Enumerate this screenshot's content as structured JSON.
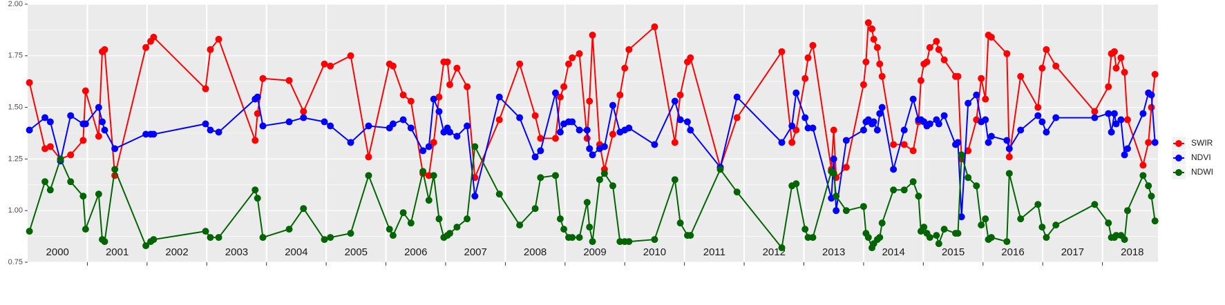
{
  "chart_data": {
    "type": "line",
    "x": [
      2000.03,
      2000.29,
      2000.38,
      2000.55,
      2000.72,
      2000.93,
      2000.97,
      2001.19,
      2001.25,
      2001.29,
      2001.46,
      2001.98,
      2002.06,
      2002.11,
      2002.98,
      2003.06,
      2003.2,
      2003.81,
      2003.85,
      2003.94,
      2004.38,
      2004.62,
      2004.97,
      2005.07,
      2005.41,
      2005.71,
      2006.06,
      2006.12,
      2006.29,
      2006.42,
      2006.62,
      2006.72,
      2006.8,
      2006.89,
      2006.97,
      2007.03,
      2007.07,
      2007.19,
      2007.36,
      2007.49,
      2007.9,
      2008.24,
      2008.5,
      2008.59,
      2008.84,
      2008.92,
      2008.98,
      2009.06,
      2009.12,
      2009.24,
      2009.37,
      2009.41,
      2009.46,
      2009.58,
      2009.66,
      2009.8,
      2009.92,
      2010.0,
      2010.07,
      2010.5,
      2010.84,
      2010.93,
      2011.05,
      2011.1,
      2011.6,
      2011.88,
      2012.63,
      2012.8,
      2012.87,
      2013.02,
      2013.07,
      2013.15,
      2013.46,
      2013.5,
      2013.54,
      2013.71,
      2014.0,
      2014.04,
      2014.08,
      2014.14,
      2014.17,
      2014.23,
      2014.27,
      2014.31,
      2014.5,
      2014.68,
      2014.83,
      2014.92,
      2014.96,
      2015.01,
      2015.06,
      2015.11,
      2015.22,
      2015.26,
      2015.35,
      2015.54,
      2015.58,
      2015.64,
      2015.75,
      2015.89,
      2015.97,
      2016.04,
      2016.09,
      2016.14,
      2016.4,
      2016.44,
      2016.63,
      2016.92,
      2016.99,
      2017.06,
      2017.22,
      2017.87,
      2018.1,
      2018.15,
      2018.2,
      2018.23,
      2018.31,
      2018.37,
      2018.42,
      2018.68,
      2018.77,
      2018.82,
      2018.88
    ],
    "series": [
      {
        "name": "SWIR",
        "color": "#ff0000",
        "values": [
          1.62,
          1.3,
          1.31,
          1.25,
          1.27,
          1.34,
          1.58,
          1.36,
          1.77,
          1.78,
          1.17,
          1.79,
          1.82,
          1.84,
          1.59,
          1.78,
          1.83,
          1.34,
          1.47,
          1.64,
          1.63,
          1.48,
          1.71,
          1.7,
          1.75,
          1.26,
          1.71,
          1.7,
          1.56,
          1.53,
          1.18,
          1.17,
          1.33,
          1.55,
          1.72,
          1.72,
          1.61,
          1.69,
          1.6,
          1.16,
          1.44,
          1.71,
          1.46,
          1.35,
          1.35,
          1.55,
          1.6,
          1.71,
          1.74,
          1.76,
          1.35,
          1.53,
          1.85,
          1.32,
          1.2,
          1.37,
          1.56,
          1.69,
          1.78,
          1.89,
          1.33,
          1.56,
          1.72,
          1.74,
          1.21,
          1.45,
          1.77,
          1.33,
          1.39,
          1.64,
          1.74,
          1.8,
          1.2,
          1.39,
          1.16,
          1.21,
          1.61,
          1.72,
          1.91,
          1.88,
          1.83,
          1.79,
          1.71,
          1.65,
          1.32,
          1.32,
          1.29,
          1.43,
          1.63,
          1.71,
          1.72,
          1.79,
          1.82,
          1.78,
          1.73,
          1.65,
          1.65,
          1.25,
          1.29,
          1.44,
          1.64,
          1.54,
          1.85,
          1.84,
          1.76,
          1.26,
          1.65,
          1.5,
          1.69,
          1.78,
          1.7,
          1.48,
          1.6,
          1.76,
          1.77,
          1.69,
          1.74,
          1.67,
          1.44,
          1.22,
          1.33,
          1.5,
          1.66
        ]
      },
      {
        "name": "NDVI",
        "color": "#0000ff",
        "values": [
          1.39,
          1.45,
          1.43,
          1.24,
          1.46,
          1.42,
          1.42,
          1.5,
          1.43,
          1.39,
          1.3,
          1.37,
          1.37,
          1.37,
          1.42,
          1.39,
          1.38,
          1.54,
          1.55,
          1.41,
          1.43,
          1.45,
          1.43,
          1.41,
          1.33,
          1.41,
          1.4,
          1.42,
          1.44,
          1.4,
          1.29,
          1.31,
          1.54,
          1.48,
          1.38,
          1.4,
          1.38,
          1.36,
          1.41,
          1.07,
          1.55,
          1.45,
          1.26,
          1.29,
          1.57,
          1.38,
          1.42,
          1.43,
          1.43,
          1.39,
          1.39,
          1.3,
          1.27,
          1.3,
          1.31,
          1.51,
          1.38,
          1.39,
          1.4,
          1.32,
          1.53,
          1.44,
          1.43,
          1.39,
          1.21,
          1.55,
          1.33,
          1.41,
          1.57,
          1.45,
          1.4,
          1.4,
          1.06,
          1.25,
          1.0,
          1.34,
          1.39,
          1.43,
          1.44,
          1.42,
          1.43,
          1.39,
          1.47,
          1.5,
          1.2,
          1.39,
          1.54,
          1.44,
          1.44,
          1.43,
          1.41,
          1.42,
          1.44,
          1.42,
          1.46,
          1.32,
          1.33,
          0.97,
          1.52,
          1.56,
          1.43,
          1.44,
          1.33,
          1.36,
          1.34,
          1.3,
          1.39,
          1.46,
          1.43,
          1.38,
          1.45,
          1.45,
          1.47,
          1.38,
          1.47,
          1.42,
          1.44,
          1.27,
          1.3,
          1.47,
          1.57,
          1.56,
          1.33
        ]
      },
      {
        "name": "NDWI",
        "color": "#006400",
        "values": [
          0.9,
          1.14,
          1.1,
          1.25,
          1.14,
          1.07,
          0.91,
          1.08,
          0.86,
          0.85,
          1.2,
          0.83,
          0.85,
          0.86,
          0.9,
          0.87,
          0.87,
          1.1,
          1.06,
          0.87,
          0.91,
          1.01,
          0.86,
          0.87,
          0.89,
          1.17,
          0.91,
          0.88,
          0.99,
          0.94,
          1.19,
          1.05,
          1.17,
          0.96,
          0.87,
          0.88,
          0.89,
          0.92,
          0.96,
          1.31,
          1.08,
          0.93,
          1.01,
          1.16,
          1.17,
          0.96,
          0.91,
          0.87,
          0.87,
          0.87,
          1.04,
          0.92,
          0.85,
          1.15,
          1.18,
          1.12,
          0.85,
          0.85,
          0.85,
          0.86,
          1.15,
          0.94,
          0.88,
          0.88,
          1.2,
          1.09,
          0.82,
          1.12,
          1.13,
          0.91,
          0.87,
          0.87,
          1.19,
          1.18,
          1.07,
          1.0,
          1.02,
          0.89,
          0.87,
          0.82,
          0.84,
          0.86,
          0.87,
          0.94,
          1.1,
          1.1,
          1.14,
          1.07,
          0.9,
          0.92,
          0.89,
          0.87,
          0.88,
          0.84,
          0.91,
          0.89,
          0.89,
          1.27,
          1.16,
          1.12,
          0.93,
          0.96,
          0.86,
          0.87,
          0.85,
          1.18,
          0.96,
          1.03,
          0.92,
          0.87,
          0.93,
          1.03,
          0.94,
          0.87,
          0.87,
          0.88,
          0.88,
          0.86,
          1.0,
          1.17,
          1.12,
          1.07,
          0.95
        ]
      }
    ],
    "xlim": [
      2000,
      2018.93
    ],
    "xticks": [
      {
        "value": 2000.5,
        "label": "2000"
      },
      {
        "value": 2001.5,
        "label": "2001"
      },
      {
        "value": 2002.5,
        "label": "2002"
      },
      {
        "value": 2003.5,
        "label": "2003"
      },
      {
        "value": 2004.5,
        "label": "2004"
      },
      {
        "value": 2005.5,
        "label": "2005"
      },
      {
        "value": 2006.5,
        "label": "2006"
      },
      {
        "value": 2007.5,
        "label": "2007"
      },
      {
        "value": 2008.5,
        "label": "2008"
      },
      {
        "value": 2009.5,
        "label": "2009"
      },
      {
        "value": 2010.5,
        "label": "2010"
      },
      {
        "value": 2011.5,
        "label": "2011"
      },
      {
        "value": 2012.5,
        "label": "2012"
      },
      {
        "value": 2013.5,
        "label": "2013"
      },
      {
        "value": 2014.5,
        "label": "2014"
      },
      {
        "value": 2015.5,
        "label": "2015"
      },
      {
        "value": 2016.5,
        "label": "2016"
      },
      {
        "value": 2017.5,
        "label": "2017"
      },
      {
        "value": 2018.5,
        "label": "2018"
      }
    ],
    "xgrid": [
      2001,
      2002,
      2003,
      2004,
      2005,
      2006,
      2007,
      2008,
      2009,
      2010,
      2011,
      2012,
      2013,
      2014,
      2015,
      2016,
      2017,
      2018
    ],
    "ylim": [
      0.75,
      2.0
    ],
    "yticks": [
      {
        "value": 0.75,
        "label": "0.75"
      },
      {
        "value": 1.0,
        "label": "1.00"
      },
      {
        "value": 1.25,
        "label": "1.25"
      },
      {
        "value": 1.5,
        "label": "1.50"
      },
      {
        "value": 1.75,
        "label": "1.75"
      },
      {
        "value": 2.0,
        "label": "2.00"
      }
    ],
    "grid": true,
    "legend": "right"
  }
}
